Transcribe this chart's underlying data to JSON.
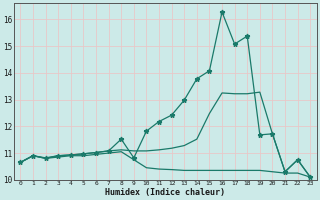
{
  "xlabel": "Humidex (Indice chaleur)",
  "bg_color": "#cceae8",
  "grid_color": "#b8d8d5",
  "line_color": "#1a7a6a",
  "xlim": [
    -0.5,
    23.5
  ],
  "ylim": [
    10.0,
    16.6
  ],
  "x_ticks": [
    0,
    1,
    2,
    3,
    4,
    5,
    6,
    7,
    8,
    9,
    10,
    11,
    12,
    13,
    14,
    15,
    16,
    17,
    18,
    19,
    20,
    21,
    22,
    23
  ],
  "y_ticks": [
    10,
    11,
    12,
    13,
    14,
    15,
    16
  ],
  "series1_x": [
    0,
    1,
    2,
    3,
    4,
    5,
    6,
    7,
    8,
    9,
    10,
    11,
    12,
    13,
    14,
    15,
    16,
    17,
    18,
    19,
    20,
    21,
    22,
    23
  ],
  "series1_y": [
    10.65,
    10.9,
    10.8,
    10.85,
    10.9,
    10.9,
    10.95,
    11.0,
    11.05,
    10.75,
    10.45,
    10.4,
    10.38,
    10.35,
    10.35,
    10.35,
    10.35,
    10.35,
    10.35,
    10.35,
    10.3,
    10.25,
    10.25,
    10.1
  ],
  "series2_x": [
    0,
    1,
    2,
    3,
    4,
    5,
    6,
    7,
    8,
    9,
    10,
    11,
    12,
    13,
    14,
    15,
    16,
    17,
    18,
    19,
    20,
    21,
    22,
    23
  ],
  "series2_y": [
    10.65,
    10.9,
    10.82,
    10.9,
    10.93,
    10.97,
    11.02,
    11.08,
    11.12,
    11.08,
    11.08,
    11.12,
    11.18,
    11.28,
    11.52,
    12.48,
    13.25,
    13.22,
    13.22,
    13.28,
    11.72,
    10.3,
    10.75,
    10.1
  ],
  "series3_x": [
    0,
    1,
    2,
    3,
    4,
    5,
    6,
    7,
    8,
    9,
    10,
    11,
    12,
    13,
    14,
    15,
    16,
    17,
    18,
    19,
    20,
    21,
    22,
    23
  ],
  "series3_y": [
    10.65,
    10.9,
    10.8,
    10.9,
    10.93,
    10.97,
    11.02,
    11.08,
    11.52,
    10.82,
    11.82,
    12.18,
    12.42,
    12.98,
    13.78,
    14.08,
    16.28,
    15.08,
    15.38,
    11.68,
    11.72,
    10.3,
    10.75,
    10.1
  ],
  "marker_style": "*",
  "marker_size": 3.5,
  "line_width": 0.9
}
